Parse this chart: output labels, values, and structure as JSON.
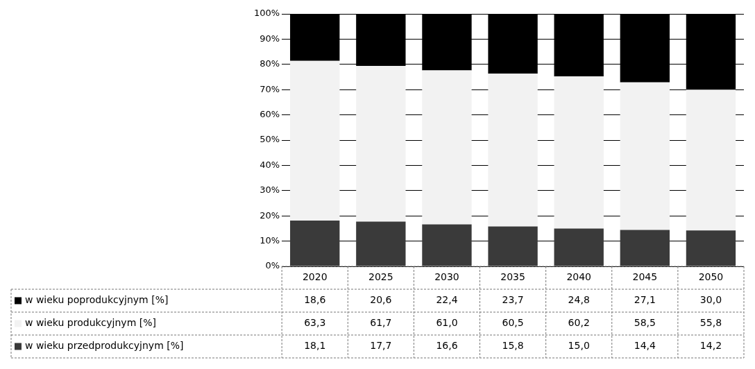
{
  "chart_data": {
    "type": "bar",
    "stacked": true,
    "grid": "y",
    "legend": "bottom left",
    "categories": [
      "2020",
      "2025",
      "2030",
      "2035",
      "2040",
      "2045",
      "2050"
    ],
    "ylim": [
      0,
      100
    ],
    "yticks": [
      {
        "value": 0,
        "label": "0%"
      },
      {
        "value": 10,
        "label": "10%"
      },
      {
        "value": 20,
        "label": "20%"
      },
      {
        "value": 30,
        "label": "30%"
      },
      {
        "value": 40,
        "label": "40%"
      },
      {
        "value": 50,
        "label": "50%"
      },
      {
        "value": 60,
        "label": "60%"
      },
      {
        "value": 70,
        "label": "70%"
      },
      {
        "value": 80,
        "label": "80%"
      },
      {
        "value": 90,
        "label": "90%"
      },
      {
        "value": 100,
        "label": "100%"
      }
    ],
    "series": [
      {
        "name": "w wieku przedprodukcyjnym [%]",
        "color": "#3a3a3a",
        "values": [
          18.1,
          17.7,
          16.6,
          15.8,
          15.0,
          14.4,
          14.2
        ],
        "value_labels": [
          "18,1",
          "17,7",
          "16,6",
          "15,8",
          "15,0",
          "14,4",
          "14,2"
        ]
      },
      {
        "name": "w wieku produkcyjnym [%]",
        "color": "#f2f2f2",
        "values": [
          63.3,
          61.7,
          61.0,
          60.5,
          60.2,
          58.5,
          55.8
        ],
        "value_labels": [
          "63,3",
          "61,7",
          "61,0",
          "60,5",
          "60,2",
          "58,5",
          "55,8"
        ]
      },
      {
        "name": "w wieku poprodukcyjnym [%]",
        "color": "#000000",
        "values": [
          18.6,
          20.6,
          22.4,
          23.7,
          24.8,
          27.1,
          30.0
        ],
        "value_labels": [
          "18,6",
          "20,6",
          "22,4",
          "23,7",
          "24,8",
          "27,1",
          "30,0"
        ]
      }
    ]
  }
}
